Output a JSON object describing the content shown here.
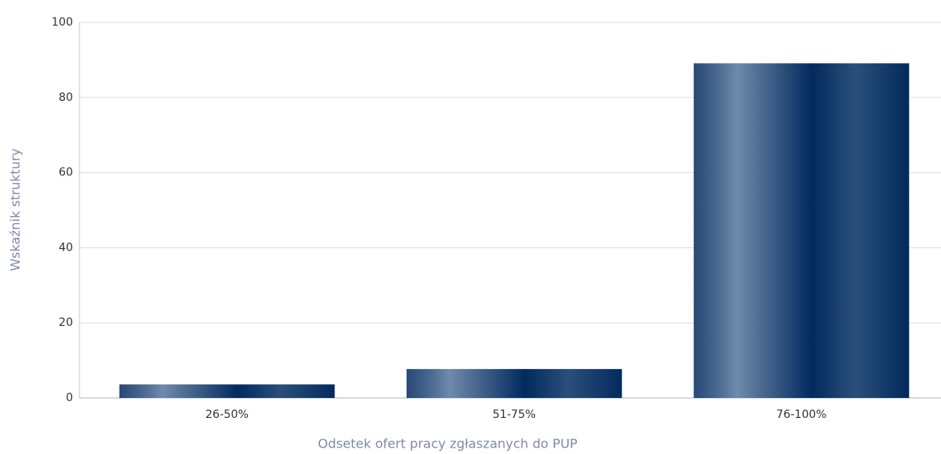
{
  "chart_data": {
    "type": "bar",
    "categories": [
      "26-50%",
      "51-75%",
      "76-100%"
    ],
    "values": [
      3.6,
      7.7,
      89.1
    ],
    "color": "#022a5e",
    "xlabel": "Odsetek ofert pracy zgłaszanych do PUP",
    "ylabel": "Wskaźnik struktury",
    "ylim": [
      0,
      100
    ],
    "yticks": [
      0,
      20,
      40,
      60,
      80,
      100
    ],
    "grid": true
  }
}
